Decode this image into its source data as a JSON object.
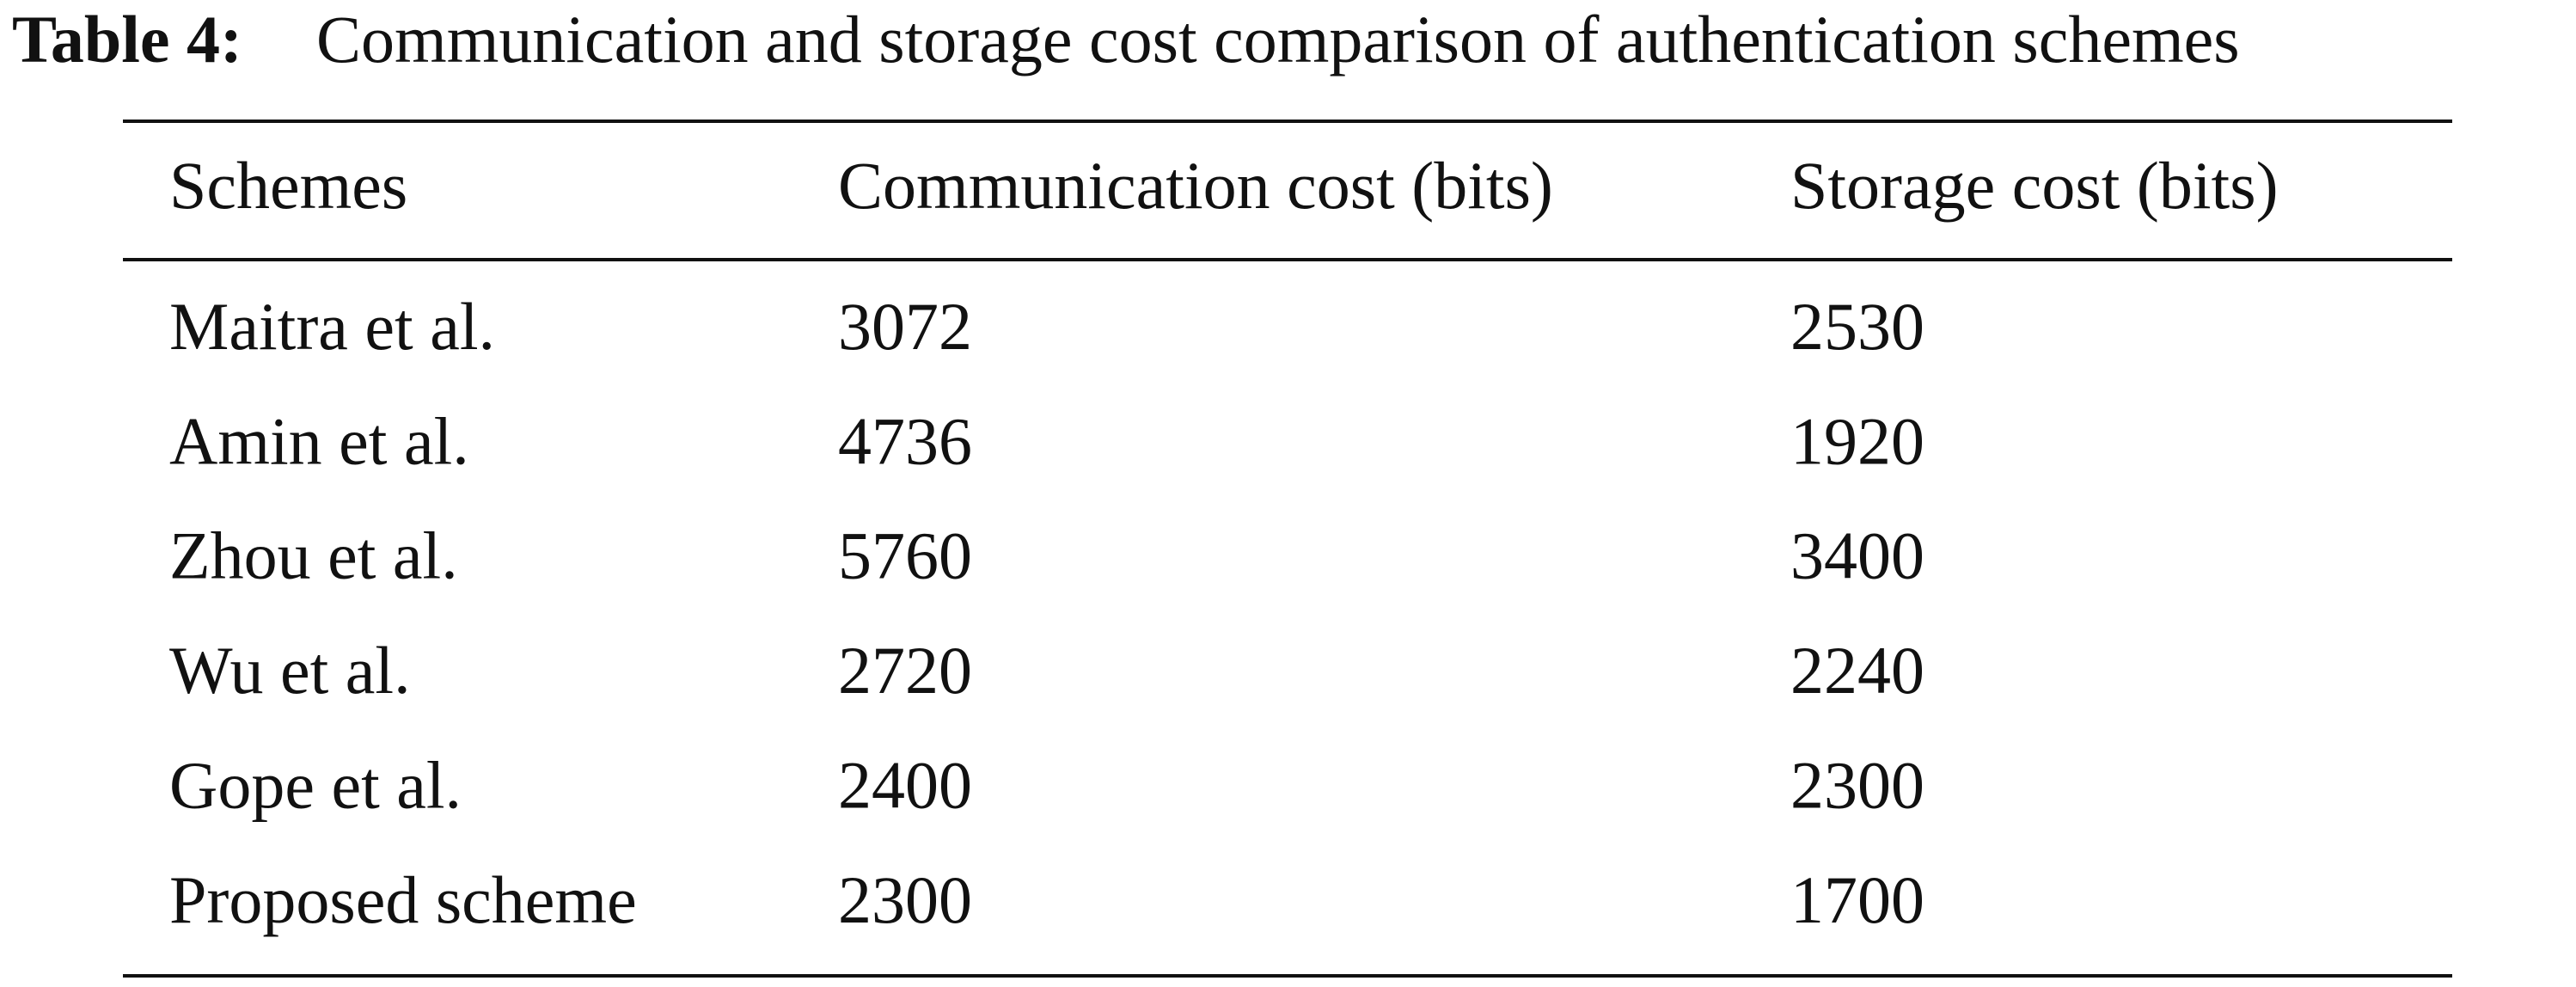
{
  "caption": {
    "label": "Table 4:",
    "text": "Communication and storage cost comparison of authentication schemes"
  },
  "table": {
    "header": [
      "Schemes",
      "Communication cost (bits)",
      "Storage cost (bits)"
    ],
    "rows": [
      [
        "Maitra et al.",
        3072,
        2530
      ],
      [
        "Amin et al.",
        4736,
        1920
      ],
      [
        "Zhou et al.",
        5760,
        3400
      ],
      [
        "Wu et al.",
        2720,
        2240
      ],
      [
        "Gope et al.",
        2400,
        2300
      ],
      [
        "Proposed scheme",
        2300,
        1700
      ]
    ]
  }
}
